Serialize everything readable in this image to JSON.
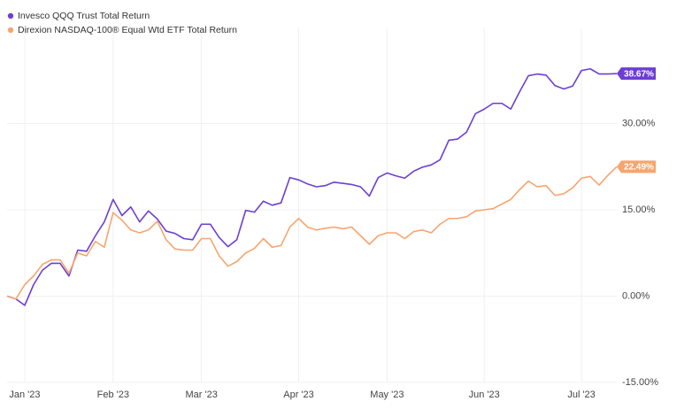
{
  "chart_data": {
    "type": "line",
    "categories": [
      null,
      null,
      "Jan '23",
      null,
      null,
      null,
      null,
      null,
      null,
      null,
      null,
      null,
      "Feb '23",
      null,
      null,
      null,
      null,
      null,
      null,
      null,
      null,
      null,
      "Mar '23",
      null,
      null,
      null,
      null,
      null,
      null,
      null,
      null,
      null,
      null,
      "Apr '23",
      null,
      null,
      null,
      null,
      null,
      null,
      null,
      null,
      null,
      "May '23",
      null,
      null,
      null,
      null,
      null,
      null,
      null,
      null,
      null,
      null,
      "Jun '23",
      null,
      null,
      null,
      null,
      null,
      null,
      null,
      null,
      null,
      null,
      "Jul '23",
      null,
      null,
      null,
      null
    ],
    "series": [
      {
        "name": "Invesco QQQ Trust Total Return",
        "color": "#6c3fd3",
        "values": [
          0,
          -0.5,
          -1.6,
          2.0,
          4.5,
          5.7,
          5.7,
          3.5,
          8.0,
          7.8,
          10.5,
          12.9,
          16.8,
          14.0,
          15.5,
          12.9,
          14.8,
          13.4,
          11.3,
          10.9,
          10.0,
          9.8,
          12.5,
          12.5,
          10.2,
          8.6,
          9.8,
          14.9,
          14.6,
          16.5,
          15.8,
          16.2,
          20.6,
          20.2,
          19.5,
          19.0,
          19.2,
          19.8,
          19.6,
          19.4,
          19.0,
          17.4,
          20.6,
          21.4,
          20.9,
          20.5,
          21.7,
          22.4,
          22.8,
          23.7,
          27.1,
          27.3,
          28.5,
          31.7,
          32.5,
          33.5,
          33.5,
          32.5,
          35.5,
          38.3,
          38.6,
          38.4,
          36.6,
          36.0,
          36.5,
          39.2,
          39.5,
          38.6,
          38.6,
          38.67
        ],
        "value_labels": [
          null,
          null,
          null,
          null,
          null,
          null,
          null,
          null,
          null,
          null,
          null,
          null,
          null,
          null,
          null,
          null,
          null,
          null,
          null,
          null,
          null,
          null,
          null,
          null,
          null,
          null,
          null,
          null,
          null,
          null,
          null,
          null,
          null,
          null,
          null,
          null,
          null,
          null,
          null,
          null,
          null,
          null,
          null,
          null,
          null,
          null,
          null,
          null,
          null,
          null,
          null,
          null,
          null,
          null,
          null,
          null,
          null,
          null,
          null,
          null,
          null,
          null,
          null,
          null,
          null,
          null,
          null,
          null,
          null,
          "38.67%"
        ]
      },
      {
        "name": "Direxion NASDAQ-100® Equal Wtd ETF Total Return",
        "color": "#f7a56e",
        "values": [
          0,
          -0.5,
          2.0,
          3.5,
          5.5,
          6.3,
          6.3,
          4.0,
          7.5,
          7.0,
          9.5,
          8.5,
          14.5,
          13.2,
          11.5,
          11.0,
          11.5,
          13.0,
          9.8,
          8.2,
          8.0,
          8.0,
          10.0,
          10.0,
          7.0,
          5.2,
          6.0,
          7.5,
          8.3,
          10.0,
          8.5,
          8.8,
          12.0,
          13.5,
          12.0,
          11.5,
          11.8,
          12.0,
          11.7,
          12.0,
          10.5,
          9.0,
          10.5,
          11.0,
          11.0,
          10.0,
          11.2,
          11.5,
          11.0,
          12.5,
          13.5,
          13.5,
          13.8,
          14.8,
          15.0,
          15.2,
          16.0,
          16.8,
          18.5,
          20.0,
          19.0,
          19.2,
          17.5,
          17.8,
          18.8,
          20.5,
          20.8,
          19.3,
          21.0,
          22.49
        ],
        "value_labels": [
          null,
          null,
          null,
          null,
          null,
          null,
          null,
          null,
          null,
          null,
          null,
          null,
          null,
          null,
          null,
          null,
          null,
          null,
          null,
          null,
          null,
          null,
          null,
          null,
          null,
          null,
          null,
          null,
          null,
          null,
          null,
          null,
          null,
          null,
          null,
          null,
          null,
          null,
          null,
          null,
          null,
          null,
          null,
          null,
          null,
          null,
          null,
          null,
          null,
          null,
          null,
          null,
          null,
          null,
          null,
          null,
          null,
          null,
          null,
          null,
          null,
          null,
          null,
          null,
          null,
          null,
          null,
          null,
          null,
          "22.49%"
        ]
      }
    ],
    "ylim": [
      -15,
      45
    ],
    "yticks": [
      {
        "value": -15,
        "label": "-15.00%"
      },
      {
        "value": 0,
        "label": "0.00%"
      },
      {
        "value": 15,
        "label": "15.00%"
      },
      {
        "value": 30,
        "label": "30.00%"
      }
    ],
    "grid": true,
    "legend": "top-left"
  }
}
